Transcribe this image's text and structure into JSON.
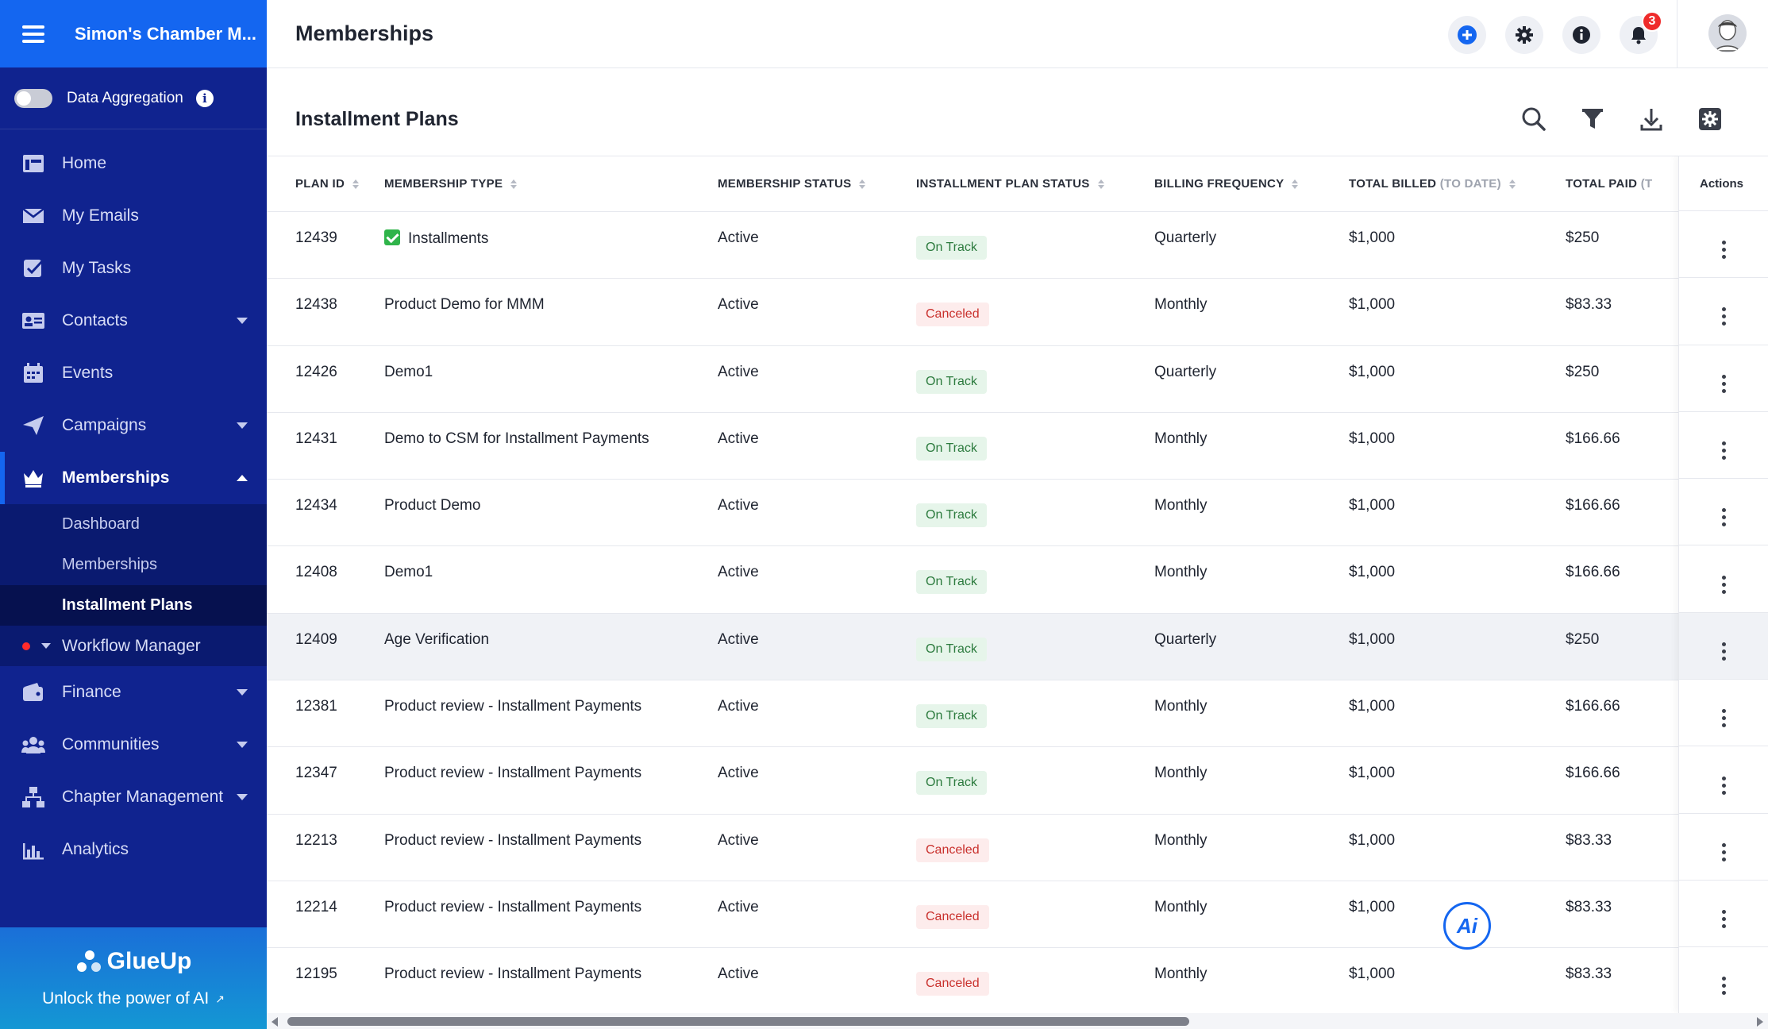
{
  "sidebar": {
    "org_name": "Simon's Chamber M...",
    "data_aggregation_label": "Data Aggregation",
    "data_aggregation_info": "i",
    "items": [
      {
        "label": "Home",
        "icon": "home-icon"
      },
      {
        "label": "My Emails",
        "icon": "envelope-icon"
      },
      {
        "label": "My Tasks",
        "icon": "checkbox-icon"
      },
      {
        "label": "Contacts",
        "icon": "contact-card-icon"
      },
      {
        "label": "Events",
        "icon": "calendar-icon"
      },
      {
        "label": "Campaigns",
        "icon": "paper-plane-icon"
      },
      {
        "label": "Memberships",
        "icon": "crown-icon"
      }
    ],
    "memberships_sub": [
      {
        "label": "Dashboard"
      },
      {
        "label": "Memberships"
      },
      {
        "label": "Installment Plans"
      }
    ],
    "workflow_label": "Workflow Manager",
    "items_after": [
      {
        "label": "Finance",
        "icon": "wallet-icon"
      },
      {
        "label": "Communities",
        "icon": "people-icon"
      },
      {
        "label": "Chapter Management",
        "icon": "sitemap-icon"
      },
      {
        "label": "Analytics",
        "icon": "bar-chart-icon"
      }
    ],
    "brand": "GlueUp",
    "ai_link": "Unlock the power of AI"
  },
  "header": {
    "title": "Memberships",
    "notification_count": "3"
  },
  "main": {
    "section_title": "Installment Plans",
    "columns": [
      {
        "label": "Plan ID"
      },
      {
        "label": "Membership Type"
      },
      {
        "label": "Membership Status"
      },
      {
        "label": "Installment Plan Status"
      },
      {
        "label": "Billing Frequency"
      },
      {
        "label": "Total Billed",
        "muted": "(To Date)"
      },
      {
        "label": "Total Paid",
        "muted": "(T"
      }
    ],
    "actions_label": "Actions",
    "rows": [
      {
        "plan_id": "12439",
        "type": "Installments",
        "status": "Active",
        "plan_status": "On Track",
        "frequency": "Quarterly",
        "billed": "$1,000",
        "paid": "$250"
      },
      {
        "plan_id": "12438",
        "type": "Product Demo for MMM",
        "status": "Active",
        "plan_status": "Canceled",
        "frequency": "Monthly",
        "billed": "$1,000",
        "paid": "$83.33"
      },
      {
        "plan_id": "12426",
        "type": "Demo1",
        "status": "Active",
        "plan_status": "On Track",
        "frequency": "Quarterly",
        "billed": "$1,000",
        "paid": "$250"
      },
      {
        "plan_id": "12431",
        "type": "Demo to CSM for Installment Payments",
        "status": "Active",
        "plan_status": "On Track",
        "frequency": "Monthly",
        "billed": "$1,000",
        "paid": "$166.66"
      },
      {
        "plan_id": "12434",
        "type": "Product Demo",
        "status": "Active",
        "plan_status": "On Track",
        "frequency": "Monthly",
        "billed": "$1,000",
        "paid": "$166.66"
      },
      {
        "plan_id": "12408",
        "type": "Demo1",
        "status": "Active",
        "plan_status": "On Track",
        "frequency": "Monthly",
        "billed": "$1,000",
        "paid": "$166.66"
      },
      {
        "plan_id": "12409",
        "type": "Age Verification",
        "status": "Active",
        "plan_status": "On Track",
        "frequency": "Quarterly",
        "billed": "$1,000",
        "paid": "$250"
      },
      {
        "plan_id": "12381",
        "type": "Product review - Installment Payments",
        "status": "Active",
        "plan_status": "On Track",
        "frequency": "Monthly",
        "billed": "$1,000",
        "paid": "$166.66"
      },
      {
        "plan_id": "12347",
        "type": "Product review - Installment Payments",
        "status": "Active",
        "plan_status": "On Track",
        "frequency": "Monthly",
        "billed": "$1,000",
        "paid": "$166.66"
      },
      {
        "plan_id": "12213",
        "type": "Product review - Installment Payments",
        "status": "Active",
        "plan_status": "Canceled",
        "frequency": "Monthly",
        "billed": "$1,000",
        "paid": "$83.33"
      },
      {
        "plan_id": "12214",
        "type": "Product review - Installment Payments",
        "status": "Active",
        "plan_status": "Canceled",
        "frequency": "Monthly",
        "billed": "$1,000",
        "paid": "$83.33"
      },
      {
        "plan_id": "12195",
        "type": "Product review - Installment Payments",
        "status": "Active",
        "plan_status": "Canceled",
        "frequency": "Monthly",
        "billed": "$1,000",
        "paid": "$83.33"
      }
    ]
  },
  "ai_fab_label": "Ai",
  "colors": {
    "sidebar_bg": "#10238f",
    "accent": "#1466f0",
    "on_track_text": "#2b7a3d",
    "canceled_text": "#c9302c"
  }
}
